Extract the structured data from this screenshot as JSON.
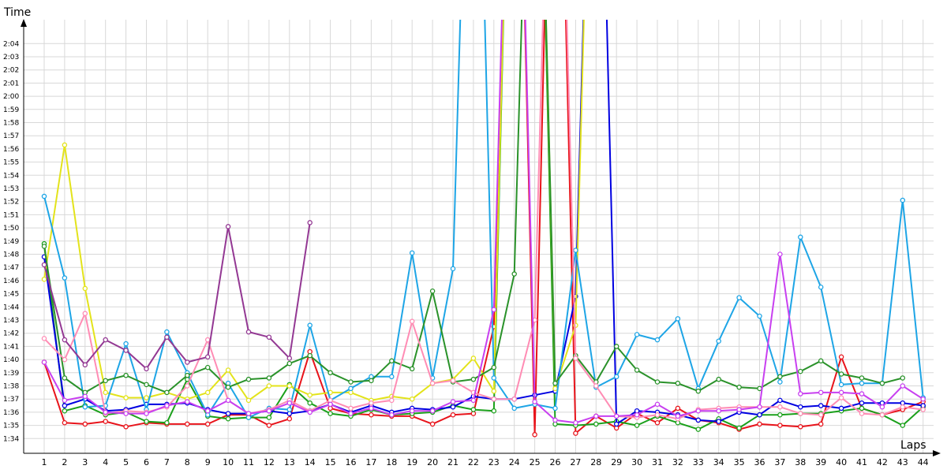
{
  "chart_data": {
    "type": "line",
    "xlabel": "Laps",
    "ylabel": "Time",
    "grid": true,
    "xlim": [
      1,
      44
    ],
    "ylim_seconds": [
      93,
      126
    ],
    "x": [
      1,
      2,
      3,
      4,
      5,
      6,
      7,
      8,
      9,
      10,
      11,
      12,
      13,
      14,
      15,
      16,
      17,
      18,
      19,
      20,
      21,
      22,
      23,
      24,
      25,
      26,
      27,
      28,
      29,
      30,
      31,
      32,
      33,
      34,
      35,
      36,
      37,
      38,
      39,
      40,
      41,
      42,
      43,
      44
    ],
    "xtick_labels": [
      "1",
      "2",
      "3",
      "4",
      "5",
      "6",
      "7",
      "8",
      "9",
      "10",
      "11",
      "12",
      "13",
      "14",
      "15",
      "16",
      "17",
      "18",
      "19",
      "20",
      "21",
      "22",
      "23",
      "24",
      "25",
      "26",
      "27",
      "28",
      "29",
      "30",
      "31",
      "32",
      "33",
      "34",
      "35",
      "36",
      "37",
      "38",
      "39",
      "40",
      "41",
      "42",
      "43",
      "44"
    ],
    "ytick_labels": [
      "1:34",
      "1:35",
      "1:36",
      "1:37",
      "1:38",
      "1:39",
      "1:40",
      "1:41",
      "1:42",
      "1:43",
      "1:44",
      "1:45",
      "1:46",
      "1:47",
      "1:48",
      "1:49",
      "1:50",
      "1:51",
      "1:52",
      "1:53",
      "1:54",
      "1:55",
      "1:56",
      "1:57",
      "1:58",
      "1:59",
      "2:00",
      "2:01",
      "2:02",
      "2:03",
      "2:04"
    ],
    "ytick_values": [
      94,
      95,
      96,
      97,
      98,
      99,
      100,
      101,
      102,
      103,
      104,
      105,
      106,
      107,
      108,
      109,
      110,
      111,
      112,
      113,
      114,
      115,
      116,
      117,
      118,
      119,
      120,
      121,
      122,
      123,
      124
    ],
    "series": [
      {
        "color": "#e8141b",
        "values": [
          99.8,
          95.2,
          95.1,
          95.3,
          94.9,
          95.2,
          95.1,
          95.1,
          95.1,
          95.8,
          95.8,
          95.0,
          95.5,
          100.6,
          96.3,
          95.9,
          95.8,
          95.7,
          95.7,
          95.1,
          95.8,
          95.9,
          102.5,
          160,
          94.3,
          160,
          94.4,
          95.7,
          94.8,
          95.9,
          95.2,
          96.3,
          95.4,
          95.2,
          94.7,
          95.1,
          95.0,
          94.9,
          95.1,
          100.2,
          96.3,
          95.8,
          96.2,
          96.8
        ]
      },
      {
        "color": "#1ba01b",
        "values": [
          108.8,
          96.1,
          96.5,
          95.8,
          96.0,
          95.3,
          95.2,
          98.5,
          95.7,
          95.5,
          95.6,
          95.6,
          98.1,
          96.7,
          95.9,
          95.7,
          96.2,
          95.8,
          95.9,
          96.0,
          96.5,
          96.2,
          96.1,
          160,
          160,
          95.1,
          95.0,
          95.1,
          95.3,
          95.0,
          95.7,
          95.2,
          94.7,
          95.5,
          94.8,
          95.8,
          95.8,
          95.9,
          95.9,
          96.1,
          96.3,
          95.8,
          95.0,
          96.4
        ]
      },
      {
        "color": "#0000e1",
        "values": [
          107.8,
          96.5,
          97.0,
          96.1,
          96.2,
          96.6,
          96.6,
          96.7,
          96.2,
          95.9,
          95.9,
          96.1,
          95.9,
          96.1,
          96.6,
          96.0,
          96.5,
          96.0,
          96.3,
          96.2,
          96.4,
          97.2,
          97.0,
          97.0,
          97.3,
          97.6,
          104.8,
          160,
          95.1,
          96.1,
          96.0,
          95.8,
          95.4,
          95.3,
          96.0,
          95.8,
          96.9,
          96.4,
          96.5,
          96.3,
          96.7,
          96.7,
          96.7,
          96.5
        ]
      },
      {
        "color": "#e3e31b",
        "values": [
          106.1,
          116.3,
          105.4,
          97.5,
          97.1,
          97.1,
          97.5,
          97.0,
          97.5,
          99.2,
          96.9,
          98.0,
          98.0,
          97.3,
          97.5,
          97.5,
          96.9,
          97.2,
          97.0,
          98.2,
          98.5,
          100.1,
          97.6,
          160,
          160,
          97.8,
          102.6,
          160,
          null,
          null,
          null,
          null,
          null,
          null,
          null,
          null,
          null,
          null,
          null,
          null,
          null,
          null,
          null,
          null
        ]
      },
      {
        "color": "#1ea5e6",
        "values": [
          112.4,
          106.2,
          96.4,
          96.5,
          101.2,
          96.2,
          102.1,
          99.0,
          95.8,
          98.2,
          95.6,
          96.3,
          96.2,
          102.6,
          96.9,
          97.8,
          98.7,
          98.7,
          108.1,
          98.6,
          106.9,
          160,
          98.6,
          96.3,
          96.6,
          96.3,
          108.3,
          97.9,
          98.7,
          101.9,
          101.5,
          103.1,
          97.8,
          101.4,
          104.7,
          103.3,
          98.3,
          109.3,
          105.5,
          98.1,
          98.2,
          98.2,
          112.1,
          97.1
        ]
      },
      {
        "color": "#2a922a",
        "values": [
          108.6,
          98.6,
          97.5,
          98.4,
          98.8,
          98.1,
          97.5,
          98.8,
          99.4,
          97.9,
          98.5,
          98.6,
          99.7,
          100.3,
          99.0,
          98.3,
          98.4,
          99.9,
          99.3,
          105.2,
          98.3,
          98.5,
          99.4,
          106.5,
          160,
          98.2,
          100.3,
          98.3,
          101.0,
          99.2,
          98.3,
          98.2,
          97.6,
          98.5,
          97.9,
          97.8,
          98.7,
          99.1,
          99.9,
          98.9,
          98.6,
          98.2,
          98.6,
          null
        ]
      },
      {
        "color": "#ff8cb4",
        "values": [
          101.6,
          100.0,
          103.5,
          95.9,
          96.1,
          96.0,
          96.4,
          98.0,
          101.5,
          96.9,
          95.9,
          96.2,
          96.9,
          96.1,
          96.9,
          96.3,
          96.7,
          96.9,
          102.9,
          98.2,
          98.4,
          97.5,
          97.0,
          97.0,
          103.0,
          160,
          100.1,
          98.0,
          95.7,
          95.6,
          95.8,
          95.5,
          96.2,
          96.3,
          96.4,
          96.4,
          96.4,
          95.9,
          95.8,
          97.1,
          95.9,
          95.8,
          96.4,
          96.2
        ]
      },
      {
        "color": "#933893",
        "values": [
          107.2,
          101.5,
          99.6,
          101.5,
          100.7,
          99.3,
          101.7,
          99.8,
          100.2,
          110.1,
          102.1,
          101.7,
          100.1,
          110.4,
          null,
          null,
          null,
          null,
          null,
          null,
          null,
          null,
          null,
          null,
          null,
          null,
          null,
          null,
          null,
          null,
          null,
          null,
          null,
          null,
          null,
          null,
          null,
          null,
          null,
          null,
          null,
          null,
          null,
          null
        ]
      },
      {
        "color": "#c840f0",
        "values": [
          99.8,
          96.9,
          97.2,
          96.0,
          95.9,
          95.9,
          96.5,
          96.8,
          96.1,
          96.9,
          95.9,
          96.1,
          96.7,
          96.0,
          96.6,
          95.9,
          96.3,
          95.8,
          96.1,
          96.1,
          96.8,
          96.9,
          103.8,
          160,
          96.8,
          95.4,
          95.2,
          95.7,
          95.7,
          95.8,
          96.6,
          95.7,
          96.1,
          96.1,
          96.2,
          96.4,
          108.0,
          97.4,
          97.5,
          97.5,
          97.4,
          96.4,
          98.0,
          97.0
        ]
      }
    ]
  }
}
